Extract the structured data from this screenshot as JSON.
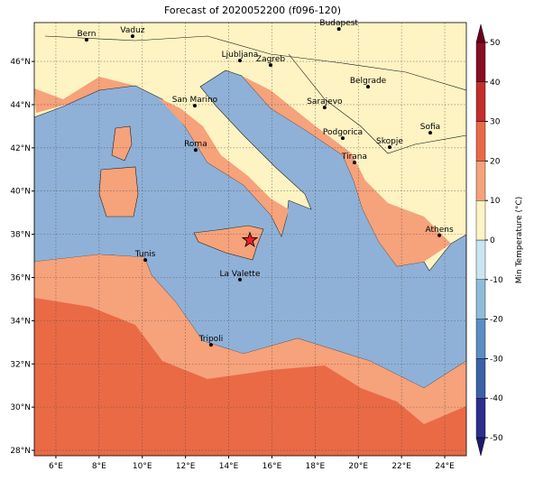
{
  "map": {
    "title": "Forecast of 2020052200 (f096-120)",
    "xlim": [
      5,
      25
    ],
    "ylim": [
      27.75,
      47.8
    ],
    "xticks": [
      {
        "value": 6,
        "label": "6°E"
      },
      {
        "value": 8,
        "label": "8°E"
      },
      {
        "value": 10,
        "label": "10°E"
      },
      {
        "value": 12,
        "label": "12°E"
      },
      {
        "value": 14,
        "label": "14°E"
      },
      {
        "value": 16,
        "label": "16°E"
      },
      {
        "value": 18,
        "label": "18°E"
      },
      {
        "value": 20,
        "label": "20°E"
      },
      {
        "value": 22,
        "label": "22°E"
      },
      {
        "value": 24,
        "label": "24°E"
      }
    ],
    "yticks": [
      {
        "value": 28,
        "label": "28°N"
      },
      {
        "value": 30,
        "label": "30°N"
      },
      {
        "value": 32,
        "label": "32°N"
      },
      {
        "value": 34,
        "label": "34°N"
      },
      {
        "value": 36,
        "label": "36°N"
      },
      {
        "value": 38,
        "label": "38°N"
      },
      {
        "value": 40,
        "label": "40°N"
      },
      {
        "value": 42,
        "label": "42°N"
      },
      {
        "value": 44,
        "label": "44°N"
      },
      {
        "value": 46,
        "label": "46°N"
      }
    ],
    "grid": true,
    "cities": [
      {
        "name": "Bern",
        "lon": 7.42,
        "lat": 47.0
      },
      {
        "name": "Vaduz",
        "lon": 9.55,
        "lat": 47.17
      },
      {
        "name": "Budapest",
        "lon": 19.1,
        "lat": 47.5
      },
      {
        "name": "Ljubljana",
        "lon": 14.52,
        "lat": 46.04
      },
      {
        "name": "Zagreb",
        "lon": 15.94,
        "lat": 45.83
      },
      {
        "name": "Belgrade",
        "lon": 20.45,
        "lat": 44.83
      },
      {
        "name": "Sarajevo",
        "lon": 18.44,
        "lat": 43.87
      },
      {
        "name": "San Marino",
        "lon": 12.43,
        "lat": 43.95
      },
      {
        "name": "Sofia",
        "lon": 23.33,
        "lat": 42.7
      },
      {
        "name": "Podgorica",
        "lon": 19.28,
        "lat": 42.45
      },
      {
        "name": "Skopje",
        "lon": 21.45,
        "lat": 42.03
      },
      {
        "name": "Roma",
        "lon": 12.47,
        "lat": 41.9
      },
      {
        "name": "Tirana",
        "lon": 19.82,
        "lat": 41.32
      },
      {
        "name": "Athens",
        "lon": 23.75,
        "lat": 37.95
      },
      {
        "name": "Tunis",
        "lon": 10.14,
        "lat": 36.81
      },
      {
        "name": "La Valette",
        "lon": 14.52,
        "lat": 35.9
      },
      {
        "name": "Tripoli",
        "lon": 13.18,
        "lat": 32.88
      }
    ],
    "event": {
      "lon": 14.98,
      "lat": 37.73,
      "color": "#e8202a"
    },
    "colorbar": {
      "label": "Min Temperature (°C)",
      "ticks": [
        -50,
        -40,
        -30,
        -20,
        -10,
        0,
        10,
        20,
        30,
        40,
        50
      ],
      "colors": [
        "#2c2f8d",
        "#3b62a8",
        "#5b8fc4",
        "#8fbcd9",
        "#c9e6f0",
        "#fdf3c3",
        "#f6a27b",
        "#ea6a46",
        "#c42e2a",
        "#8a0e22"
      ],
      "under_color": "#1b1c6e",
      "over_color": "#67001f"
    }
  }
}
